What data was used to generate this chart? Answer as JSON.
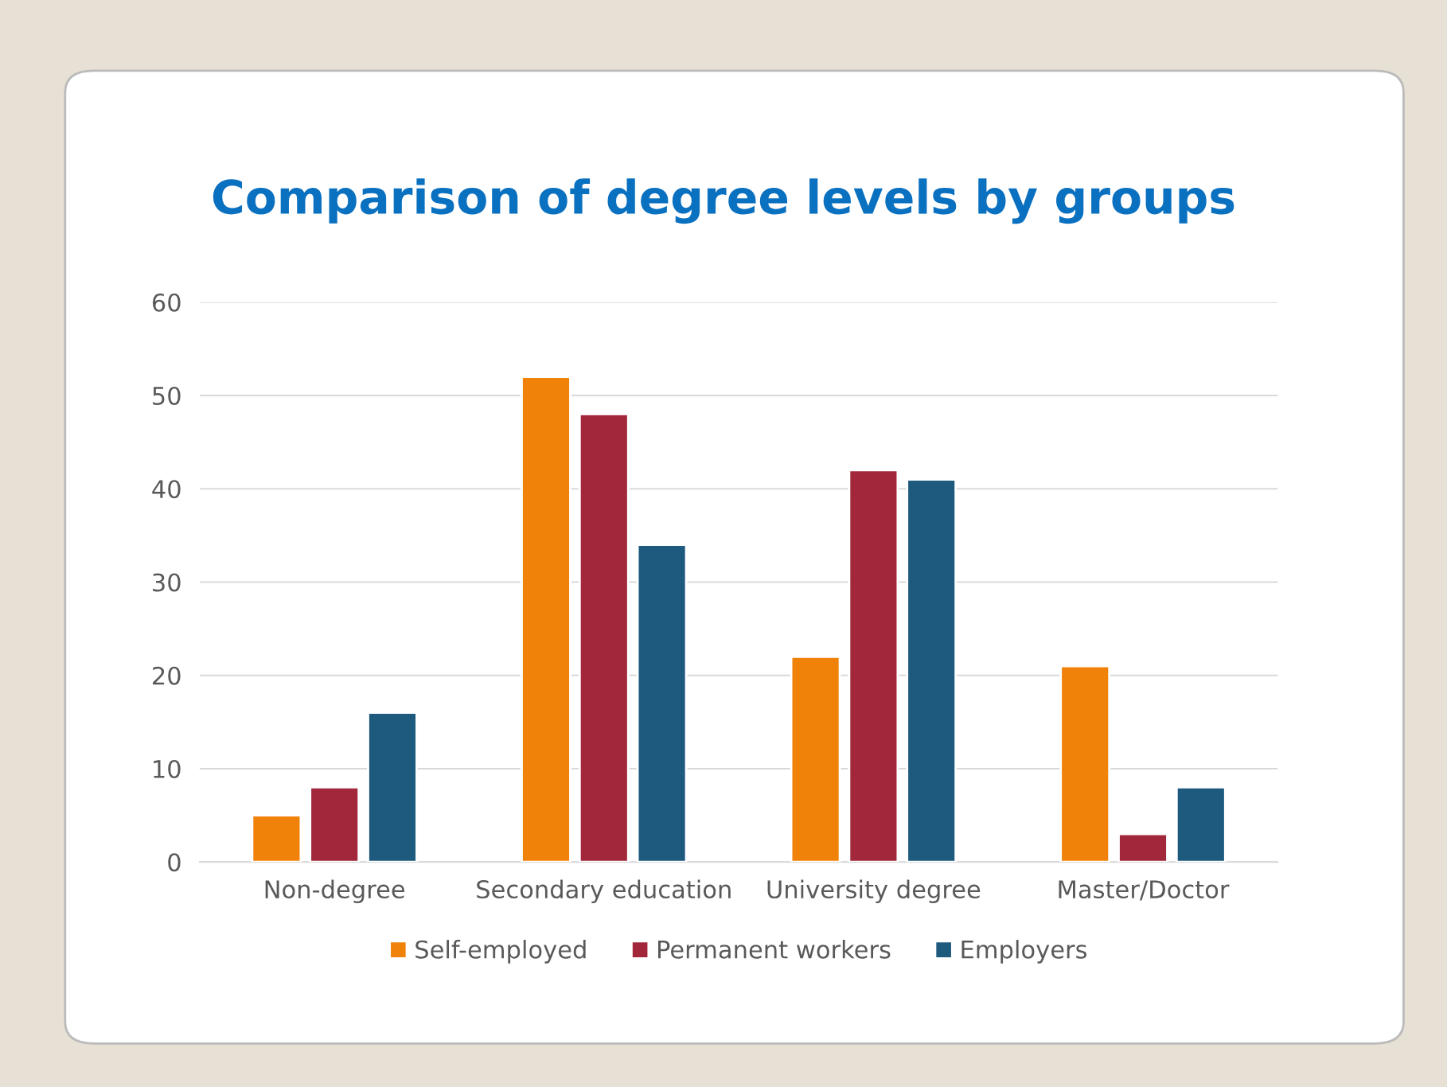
{
  "chart_data": {
    "type": "bar",
    "title": "Comparison of degree levels by groups",
    "categories": [
      "Non-degree",
      "Secondary education",
      "University degree",
      "Master/Doctor"
    ],
    "series": [
      {
        "name": "Self-employed",
        "color": "#f0820a",
        "values": [
          5,
          52,
          22,
          21
        ]
      },
      {
        "name": "Permanent workers",
        "color": "#a2273a",
        "values": [
          8,
          48,
          42,
          3
        ]
      },
      {
        "name": "Employers",
        "color": "#1d5a7e",
        "values": [
          16,
          34,
          41,
          8
        ]
      }
    ],
    "ylim": [
      0,
      60
    ],
    "yticks": [
      0,
      10,
      20,
      30,
      40,
      50,
      60
    ],
    "grid": "y",
    "legend": "bottom"
  }
}
